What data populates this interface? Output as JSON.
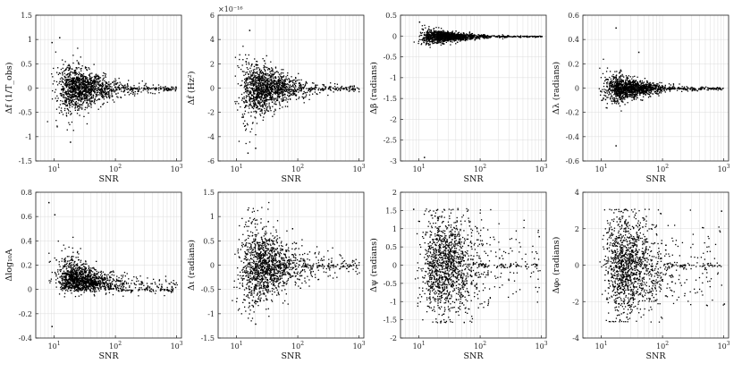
{
  "chart_data": [
    {
      "type": "scatter",
      "name": "df",
      "xlabel": "SNR",
      "ylabel": "Δf (1/T_obs)",
      "ylim": [
        -1.5,
        1.5
      ],
      "yticks": [
        "-1.5",
        "-1",
        "-0.5",
        "0",
        "0.5",
        "1",
        "1.5"
      ],
      "ytick_values": [
        -1.5,
        -1,
        -0.5,
        0,
        0.5,
        1,
        1.5
      ],
      "xscale": "log",
      "xlim": [
        5,
        1200
      ],
      "xticks": [
        "10",
        "10",
        "10"
      ],
      "xtick_exps": [
        "1",
        "2",
        "3"
      ],
      "multiplier": "",
      "spread": 0.28,
      "decay": 0.55,
      "outliers": [
        [
          12,
          1.05
        ],
        [
          18,
          -1.1
        ],
        [
          9,
          0.95
        ]
      ],
      "positive_only": false
    },
    {
      "type": "scatter",
      "name": "dfdot",
      "xlabel": "SNR",
      "ylabel": "Δḟ (Hz²)",
      "ylim": [
        -6,
        6
      ],
      "yticks": [
        "-6",
        "-4",
        "-2",
        "0",
        "2",
        "4",
        "6"
      ],
      "ytick_values": [
        -6,
        -4,
        -2,
        0,
        2,
        4,
        6
      ],
      "xscale": "log",
      "xlim": [
        5,
        1200
      ],
      "xticks": [
        "10",
        "10",
        "10"
      ],
      "xtick_exps": [
        "1",
        "2",
        "3"
      ],
      "multiplier": "×10⁻¹⁶",
      "spread": 1.3,
      "decay": 0.55,
      "outliers": [
        [
          16,
          4.8
        ],
        [
          15,
          -5.3
        ],
        [
          20,
          -4.9
        ]
      ],
      "positive_only": false
    },
    {
      "type": "scatter",
      "name": "dbeta",
      "xlabel": "SNR",
      "ylabel": "Δβ (radians)",
      "ylim": [
        -3,
        0.5
      ],
      "yticks": [
        "-3",
        "-2.5",
        "-2",
        "-1.5",
        "-1",
        "-0.5",
        "0",
        "0.5"
      ],
      "ytick_values": [
        -3,
        -2.5,
        -2,
        -1.5,
        -1,
        -0.5,
        0,
        0.5
      ],
      "xscale": "log",
      "xlim": [
        5,
        1200
      ],
      "xticks": [
        "10",
        "10",
        "10"
      ],
      "xtick_exps": [
        "1",
        "2",
        "3"
      ],
      "multiplier": "",
      "spread": 0.09,
      "decay": 0.6,
      "outliers": [
        [
          12,
          -2.9
        ],
        [
          10,
          0.35
        ]
      ],
      "positive_only": false
    },
    {
      "type": "scatter",
      "name": "dlambda",
      "xlabel": "SNR",
      "ylabel": "Δλ (radians)",
      "ylim": [
        -0.6,
        0.6
      ],
      "yticks": [
        "-0.6",
        "-0.4",
        "-0.2",
        "0",
        "0.2",
        "0.4",
        "0.6"
      ],
      "ytick_values": [
        -0.6,
        -0.4,
        -0.2,
        0,
        0.2,
        0.4,
        0.6
      ],
      "xscale": "log",
      "xlim": [
        5,
        1200
      ],
      "xticks": [
        "10",
        "10",
        "10"
      ],
      "xtick_exps": [
        "1",
        "2",
        "3"
      ],
      "multiplier": "",
      "spread": 0.06,
      "decay": 0.6,
      "outliers": [
        [
          17,
          0.5
        ],
        [
          17,
          -0.47
        ],
        [
          40,
          0.3
        ]
      ],
      "positive_only": false
    },
    {
      "type": "scatter",
      "name": "dlogA",
      "xlabel": "SNR",
      "ylabel": "Δlog₁₀A",
      "ylim": [
        -0.4,
        0.8
      ],
      "yticks": [
        "-0.4",
        "-0.2",
        "0",
        "0.2",
        "0.4",
        "0.6",
        "0.8"
      ],
      "ytick_values": [
        -0.4,
        -0.2,
        0,
        0.2,
        0.4,
        0.6,
        0.8
      ],
      "xscale": "log",
      "xlim": [
        5,
        1200
      ],
      "xticks": [
        "10",
        "10",
        "10"
      ],
      "xtick_exps": [
        "1",
        "2",
        "3"
      ],
      "multiplier": "",
      "spread": 0.13,
      "decay": 0.5,
      "outliers": [
        [
          8,
          0.72
        ],
        [
          10,
          0.62
        ],
        [
          9,
          -0.3
        ]
      ],
      "positive_only": true
    },
    {
      "type": "scatter",
      "name": "diota",
      "xlabel": "SNR",
      "ylabel": "Δι (radians)",
      "ylim": [
        -1.5,
        1.5
      ],
      "yticks": [
        "-1.5",
        "-1",
        "-0.5",
        "0",
        "0.5",
        "1",
        "1.5"
      ],
      "ytick_values": [
        -1.5,
        -1,
        -0.5,
        0,
        0.5,
        1,
        1.5
      ],
      "xscale": "log",
      "xlim": [
        5,
        1200
      ],
      "xticks": [
        "10",
        "10",
        "10"
      ],
      "xtick_exps": [
        "1",
        "2",
        "3"
      ],
      "multiplier": "",
      "spread": 0.45,
      "decay": 0.35,
      "outliers": [
        [
          15,
          1.15
        ],
        [
          20,
          -1.2
        ]
      ],
      "positive_only": false
    },
    {
      "type": "scatter",
      "name": "dpsi",
      "xlabel": "SNR",
      "ylabel": "Δψ (radians)",
      "ylim": [
        -2,
        2
      ],
      "yticks": [
        "-2",
        "-1.5",
        "-1",
        "-0.5",
        "0",
        "0.5",
        "1",
        "1.5",
        "2"
      ],
      "ytick_values": [
        -2,
        -1.5,
        -1,
        -0.5,
        0,
        0.5,
        1,
        1.5,
        2
      ],
      "xscale": "log",
      "xlim": [
        5,
        1200
      ],
      "xticks": [
        "10",
        "10",
        "10"
      ],
      "xtick_exps": [
        "1",
        "2",
        "3"
      ],
      "multiplier": "",
      "spread": 0.7,
      "decay": 0.05,
      "clip": 1.57,
      "outliers": [
        [
          8,
          1.55
        ],
        [
          900,
          0.8
        ]
      ],
      "positive_only": false
    },
    {
      "type": "scatter",
      "name": "dphi0",
      "xlabel": "SNR",
      "ylabel": "Δφ₀ (radians)",
      "ylim": [
        -4,
        4
      ],
      "yticks": [
        "-4",
        "-2",
        "0",
        "2",
        "4"
      ],
      "ytick_values": [
        -4,
        -2,
        0,
        2,
        4
      ],
      "xscale": "log",
      "xlim": [
        5,
        1200
      ],
      "xticks": [
        "10",
        "10",
        "10"
      ],
      "xtick_exps": [
        "1",
        "2",
        "3"
      ],
      "multiplier": "",
      "spread": 1.4,
      "decay": 0.05,
      "clip": 3.1,
      "outliers": [
        [
          900,
          3.0
        ],
        [
          1000,
          -2.1
        ]
      ],
      "positive_only": false
    }
  ]
}
